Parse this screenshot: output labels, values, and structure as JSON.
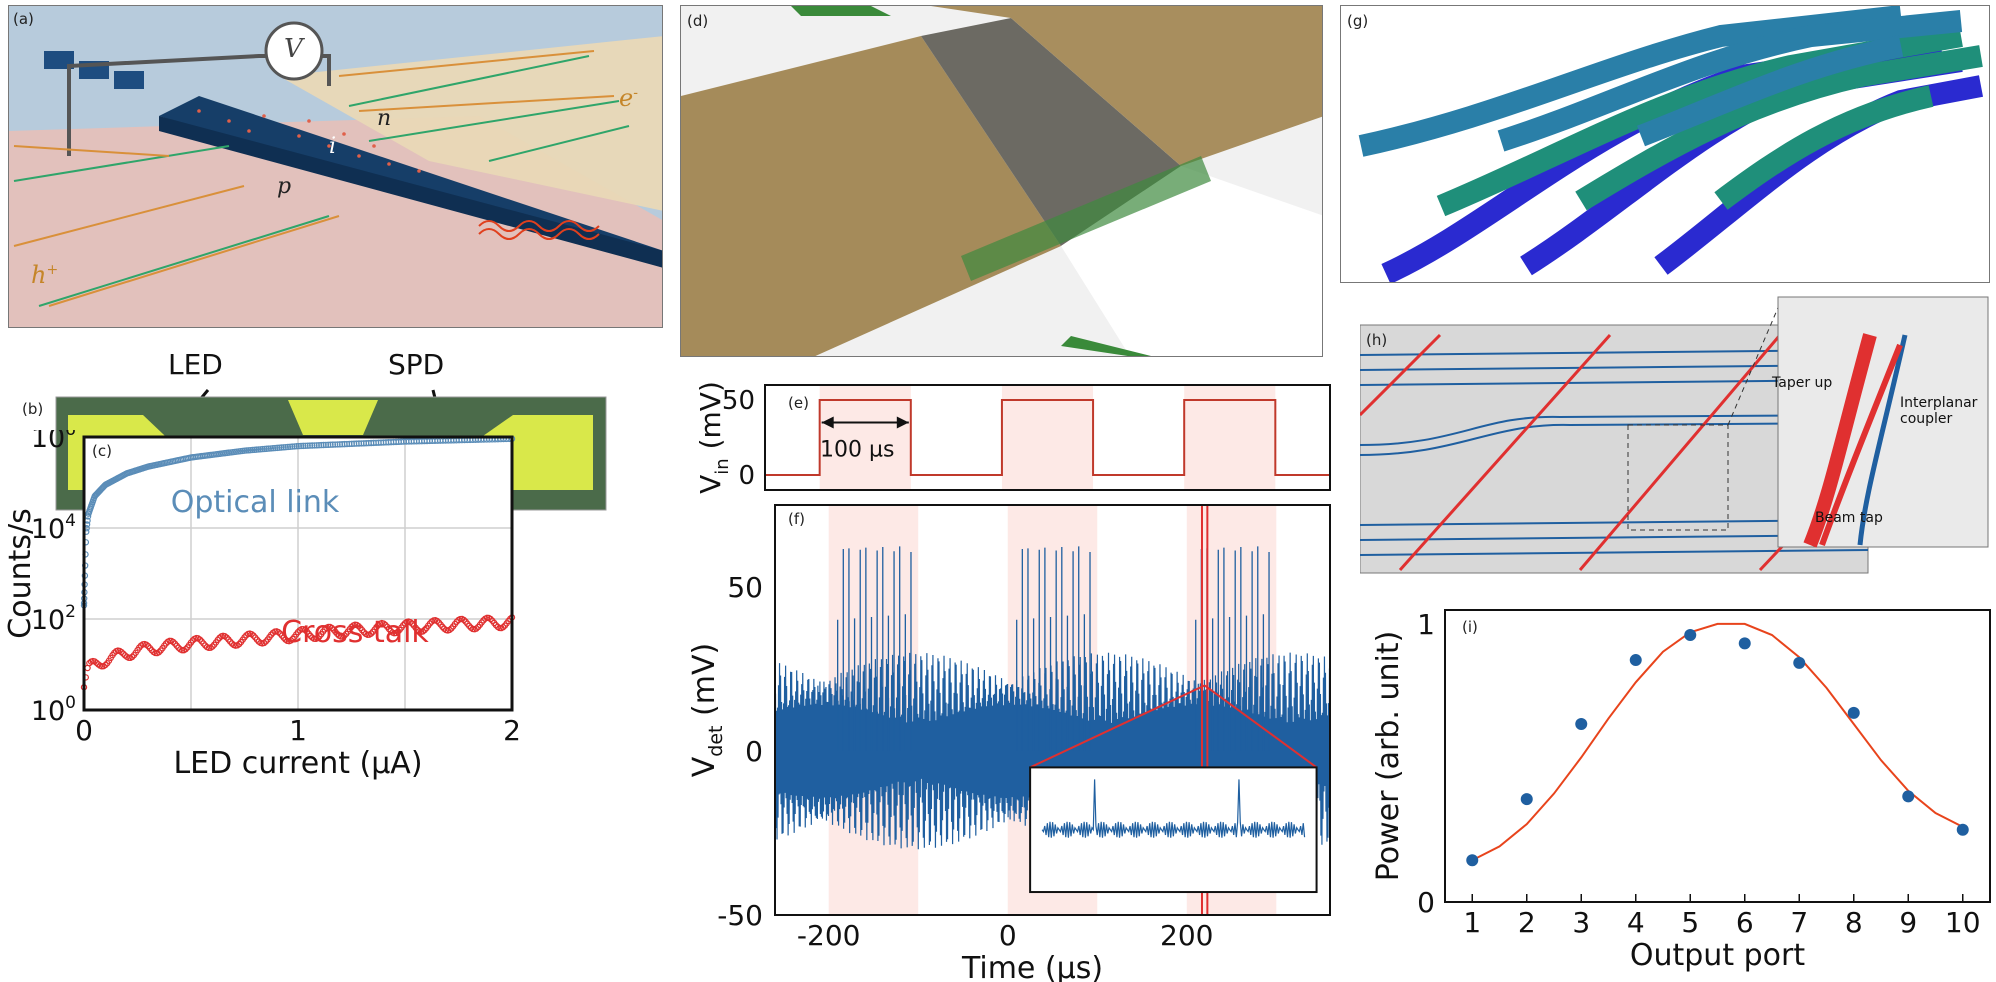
{
  "panels": {
    "a": {
      "label": "(a)",
      "voltage_symbol": "V",
      "n_label": "n",
      "i_label": "i",
      "p_label": "p",
      "e_label": "e",
      "e_sup": "-",
      "h_label": "h",
      "h_sup": "+"
    },
    "b": {
      "label": "(b)",
      "led_label": "LED",
      "spd_label": "SPD"
    },
    "c": {
      "label": "(c)"
    },
    "d": {
      "label": "(d)"
    },
    "e": {
      "label": "(e)",
      "width_annotation": "100 µs"
    },
    "f": {
      "label": "(f)"
    },
    "g": {
      "label": "(g)"
    },
    "h": {
      "label": "(h)",
      "taper_up": "Taper up",
      "interplanar_coupler": "Interplanar coupler",
      "beam_tap": "Beam tap"
    },
    "i": {
      "label": "(i)"
    }
  },
  "colors": {
    "blue_data": "#1f5fa0",
    "red_data": "#e03030",
    "fit_red": "#e8441c",
    "optical_blue": "#5b8db8"
  },
  "chart_data": [
    {
      "panel": "c",
      "type": "scatter",
      "xlabel": "LED current (µA)",
      "ylabel": "Counts/s",
      "xlim": [
        0,
        2
      ],
      "ylim_log10": [
        0,
        6
      ],
      "yscale": "log",
      "xticks": [
        "0",
        "1",
        "2"
      ],
      "yticks": [
        "10^0",
        "10^2",
        "10^4",
        "10^6"
      ],
      "grid": true,
      "series": [
        {
          "name": "Optical link",
          "color": "#5b8db8",
          "x": [
            0.0,
            0.01,
            0.02,
            0.05,
            0.1,
            0.2,
            0.3,
            0.5,
            0.75,
            1.0,
            1.25,
            1.5,
            1.75,
            2.0
          ],
          "y_log10": [
            2.3,
            3.9,
            4.3,
            4.7,
            4.95,
            5.2,
            5.35,
            5.55,
            5.7,
            5.8,
            5.85,
            5.9,
            5.93,
            5.96
          ]
        },
        {
          "name": "Cross talk",
          "color": "#e03030",
          "x": [
            0.0,
            0.02,
            0.05,
            0.1,
            0.2,
            0.3,
            0.5,
            0.75,
            1.0,
            1.25,
            1.5,
            1.75,
            2.0
          ],
          "y_log10": [
            0.5,
            0.9,
            1.0,
            1.1,
            1.25,
            1.35,
            1.45,
            1.55,
            1.65,
            1.75,
            1.82,
            1.88,
            1.93
          ]
        }
      ]
    },
    {
      "panel": "e",
      "type": "line",
      "ylabel": "V_in (mV)",
      "ylabel_main": "V",
      "ylabel_sub": "in",
      "ylabel_unit": "(mV)",
      "xlim": [
        -260,
        360
      ],
      "ylim": [
        -10,
        60
      ],
      "yticks": [
        "0",
        "50"
      ],
      "pulses": [
        [
          -200,
          -100
        ],
        [
          0,
          100
        ],
        [
          200,
          300
        ]
      ],
      "series": [
        {
          "x": [
            -260,
            -200,
            -200,
            -100,
            -100,
            0,
            0,
            100,
            100,
            200,
            200,
            300,
            300,
            360
          ],
          "y": [
            0,
            0,
            50,
            50,
            0,
            0,
            50,
            50,
            0,
            0,
            50,
            50,
            0,
            0
          ]
        }
      ]
    },
    {
      "panel": "f",
      "type": "line",
      "xlabel": "Time (µs)",
      "ylabel": "V_det (mV)",
      "ylabel_main": "V",
      "ylabel_sub": "det",
      "ylabel_unit": "(mV)",
      "xlim": [
        -260,
        360
      ],
      "ylim": [
        -50,
        75
      ],
      "xticks": [
        "-200",
        "0",
        "200"
      ],
      "yticks": [
        "-50",
        "0",
        "50"
      ],
      "noise_band_mV": [
        -25,
        25
      ],
      "shaded_windows": [
        [
          -200,
          -100
        ],
        [
          0,
          100
        ],
        [
          200,
          300
        ]
      ]
    },
    {
      "panel": "i",
      "type": "scatter",
      "xlabel": "Output port",
      "ylabel": "Power (arb. unit)",
      "xlim": [
        0.5,
        10.5
      ],
      "ylim": [
        0,
        1.05
      ],
      "xticks": [
        "1",
        "2",
        "3",
        "4",
        "5",
        "6",
        "7",
        "8",
        "9",
        "10"
      ],
      "yticks": [
        "0",
        "1"
      ],
      "series": [
        {
          "type": "scatter",
          "color": "#1f5fa0",
          "x": [
            1,
            2,
            3,
            4,
            5,
            6,
            7,
            8,
            9,
            10
          ],
          "y": [
            0.15,
            0.37,
            0.64,
            0.87,
            0.96,
            0.93,
            0.86,
            0.68,
            0.38,
            0.26
          ]
        },
        {
          "type": "line",
          "color": "#e8441c",
          "x": [
            1,
            1.5,
            2,
            2.5,
            3,
            3.5,
            4,
            4.5,
            5,
            5.5,
            6,
            6.5,
            7,
            7.5,
            8,
            8.5,
            9,
            9.5,
            10
          ],
          "y": [
            0.15,
            0.2,
            0.28,
            0.39,
            0.52,
            0.66,
            0.79,
            0.9,
            0.97,
            1.0,
            1.0,
            0.96,
            0.88,
            0.77,
            0.64,
            0.51,
            0.4,
            0.32,
            0.27
          ]
        }
      ]
    }
  ]
}
